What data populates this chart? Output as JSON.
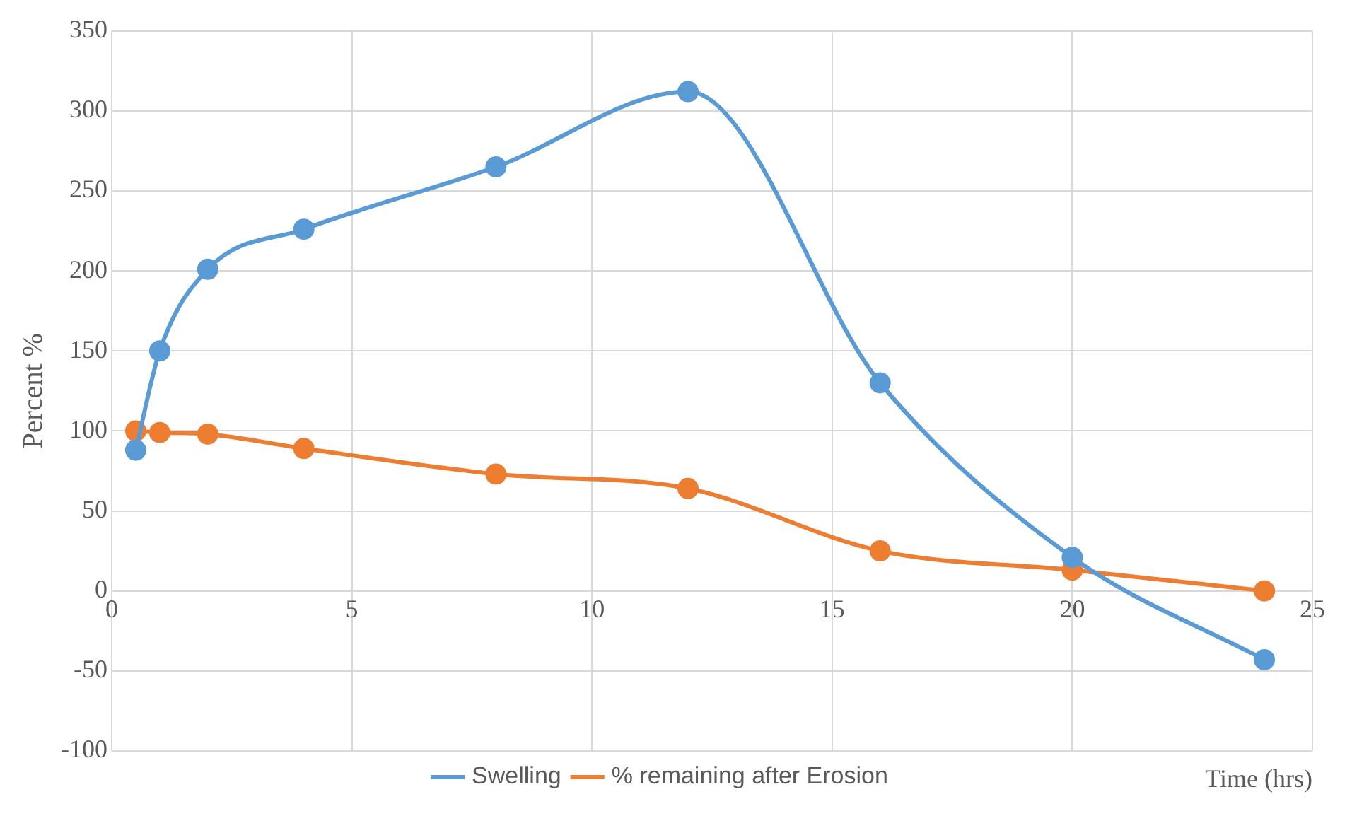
{
  "chart_data": {
    "type": "line",
    "xlabel": "Time (hrs)",
    "ylabel": "Percent %",
    "x": [
      0.5,
      1,
      2,
      4,
      8,
      12,
      16,
      20,
      24
    ],
    "series": [
      {
        "name": "Swelling",
        "color": "#5b9bd5",
        "values": [
          88,
          150,
          201,
          226,
          265,
          312,
          130,
          21,
          -43
        ]
      },
      {
        "name": "% remaining after Erosion",
        "color": "#ed7d31",
        "values": [
          100,
          99,
          98,
          89,
          73,
          64,
          25,
          13,
          0
        ]
      }
    ],
    "xlim": [
      0,
      25
    ],
    "xticks": [
      0,
      5,
      10,
      15,
      20,
      25
    ],
    "ylim": [
      -100,
      350
    ],
    "yticks": [
      -100,
      -50,
      0,
      50,
      100,
      150,
      200,
      250,
      300,
      350
    ],
    "grid": true,
    "legend": "bottom",
    "marker": "circle",
    "line_style": "solid"
  }
}
